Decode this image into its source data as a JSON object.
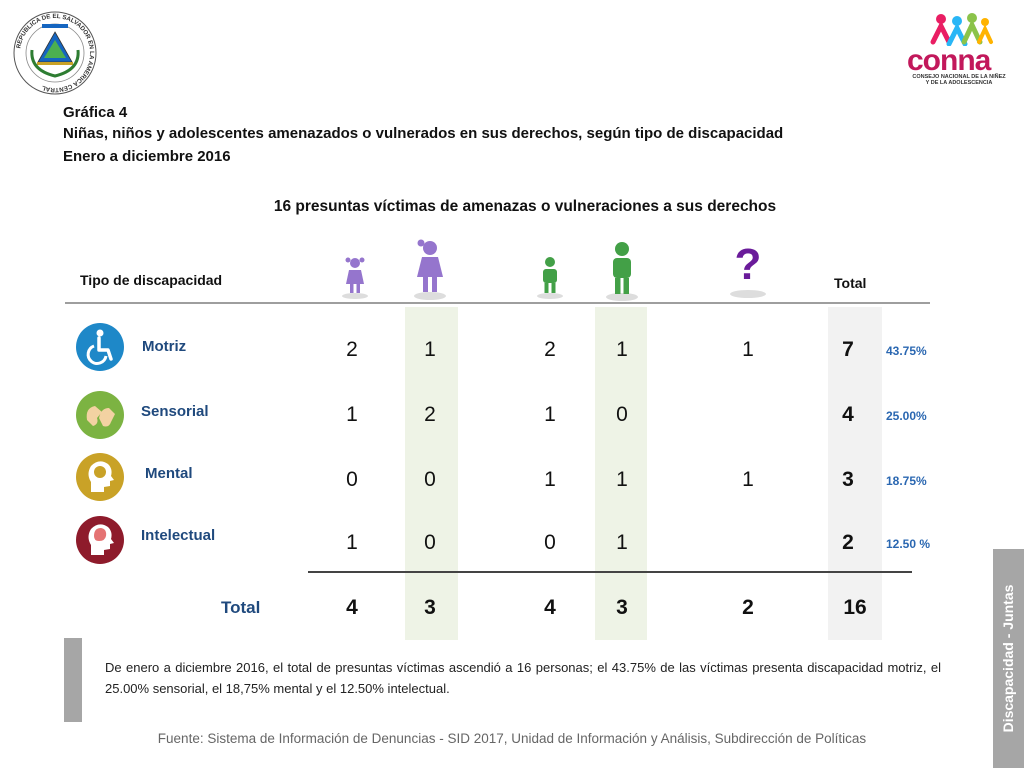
{
  "header": {
    "seal_text": "REPUBLICA DE EL SALVADOR EN LA AMERICA CENTRAL",
    "logo_word": "conna",
    "logo_subtitle_1": "CONSEJO NACIONAL DE LA NIÑEZ",
    "logo_subtitle_2": "Y DE LA ADOLESCENCIA"
  },
  "title": {
    "label": "Gráfica 4",
    "main": "Niñas, niños y adolescentes amenazados o vulnerados en sus derechos, según tipo de discapacidad",
    "period": "Enero a diciembre 2016"
  },
  "subtitle": "16 presuntas víctimas de amenazas o vulneraciones a sus derechos",
  "table": {
    "header_tipo": "Tipo de discapacidad",
    "header_total": "Total",
    "unknown_symbol": "?",
    "columns": [
      "girl",
      "adolescent-female",
      "boy",
      "adolescent-male",
      "unknown",
      "total"
    ],
    "rows": [
      {
        "label": "Motriz",
        "values": [
          "2",
          "1",
          "2",
          "1",
          "1"
        ],
        "total": "7",
        "pct": "43.75%",
        "icon_color": "#1e88c8"
      },
      {
        "label": "Sensorial",
        "values": [
          "1",
          "2",
          "1",
          "0",
          ""
        ],
        "total": "4",
        "pct": "25.00%",
        "icon_color": "#7cb342"
      },
      {
        "label": "Mental",
        "values": [
          "0",
          "0",
          "1",
          "1",
          "1"
        ],
        "total": "3",
        "pct": "18.75%",
        "icon_color": "#c9a227"
      },
      {
        "label": "Intelectual",
        "values": [
          "1",
          "0",
          "0",
          "1",
          ""
        ],
        "total": "2",
        "pct": "12.50 %",
        "icon_color": "#8e1b2b"
      }
    ],
    "totals": {
      "label": "Total",
      "values": [
        "4",
        "3",
        "4",
        "3",
        "2"
      ],
      "total": "16"
    }
  },
  "note": "De enero a diciembre 2016, el total de presuntas víctimas ascendió a 16 personas; el 43.75% de las víctimas presenta discapacidad motriz, el  25.00% sensorial, el 18,75% mental y el 12.50% intelectual.",
  "source": "Fuente: Sistema de Información de Denuncias - SID 2017, Unidad de Información y Análisis, Subdirección de Políticas",
  "side_tab": "Discapacidad - Juntas",
  "colors": {
    "female": "#9575cd",
    "male": "#43a047",
    "unknown": "#6a1b9a",
    "label_blue": "#1f497d",
    "pct_blue": "#2a67b1"
  }
}
